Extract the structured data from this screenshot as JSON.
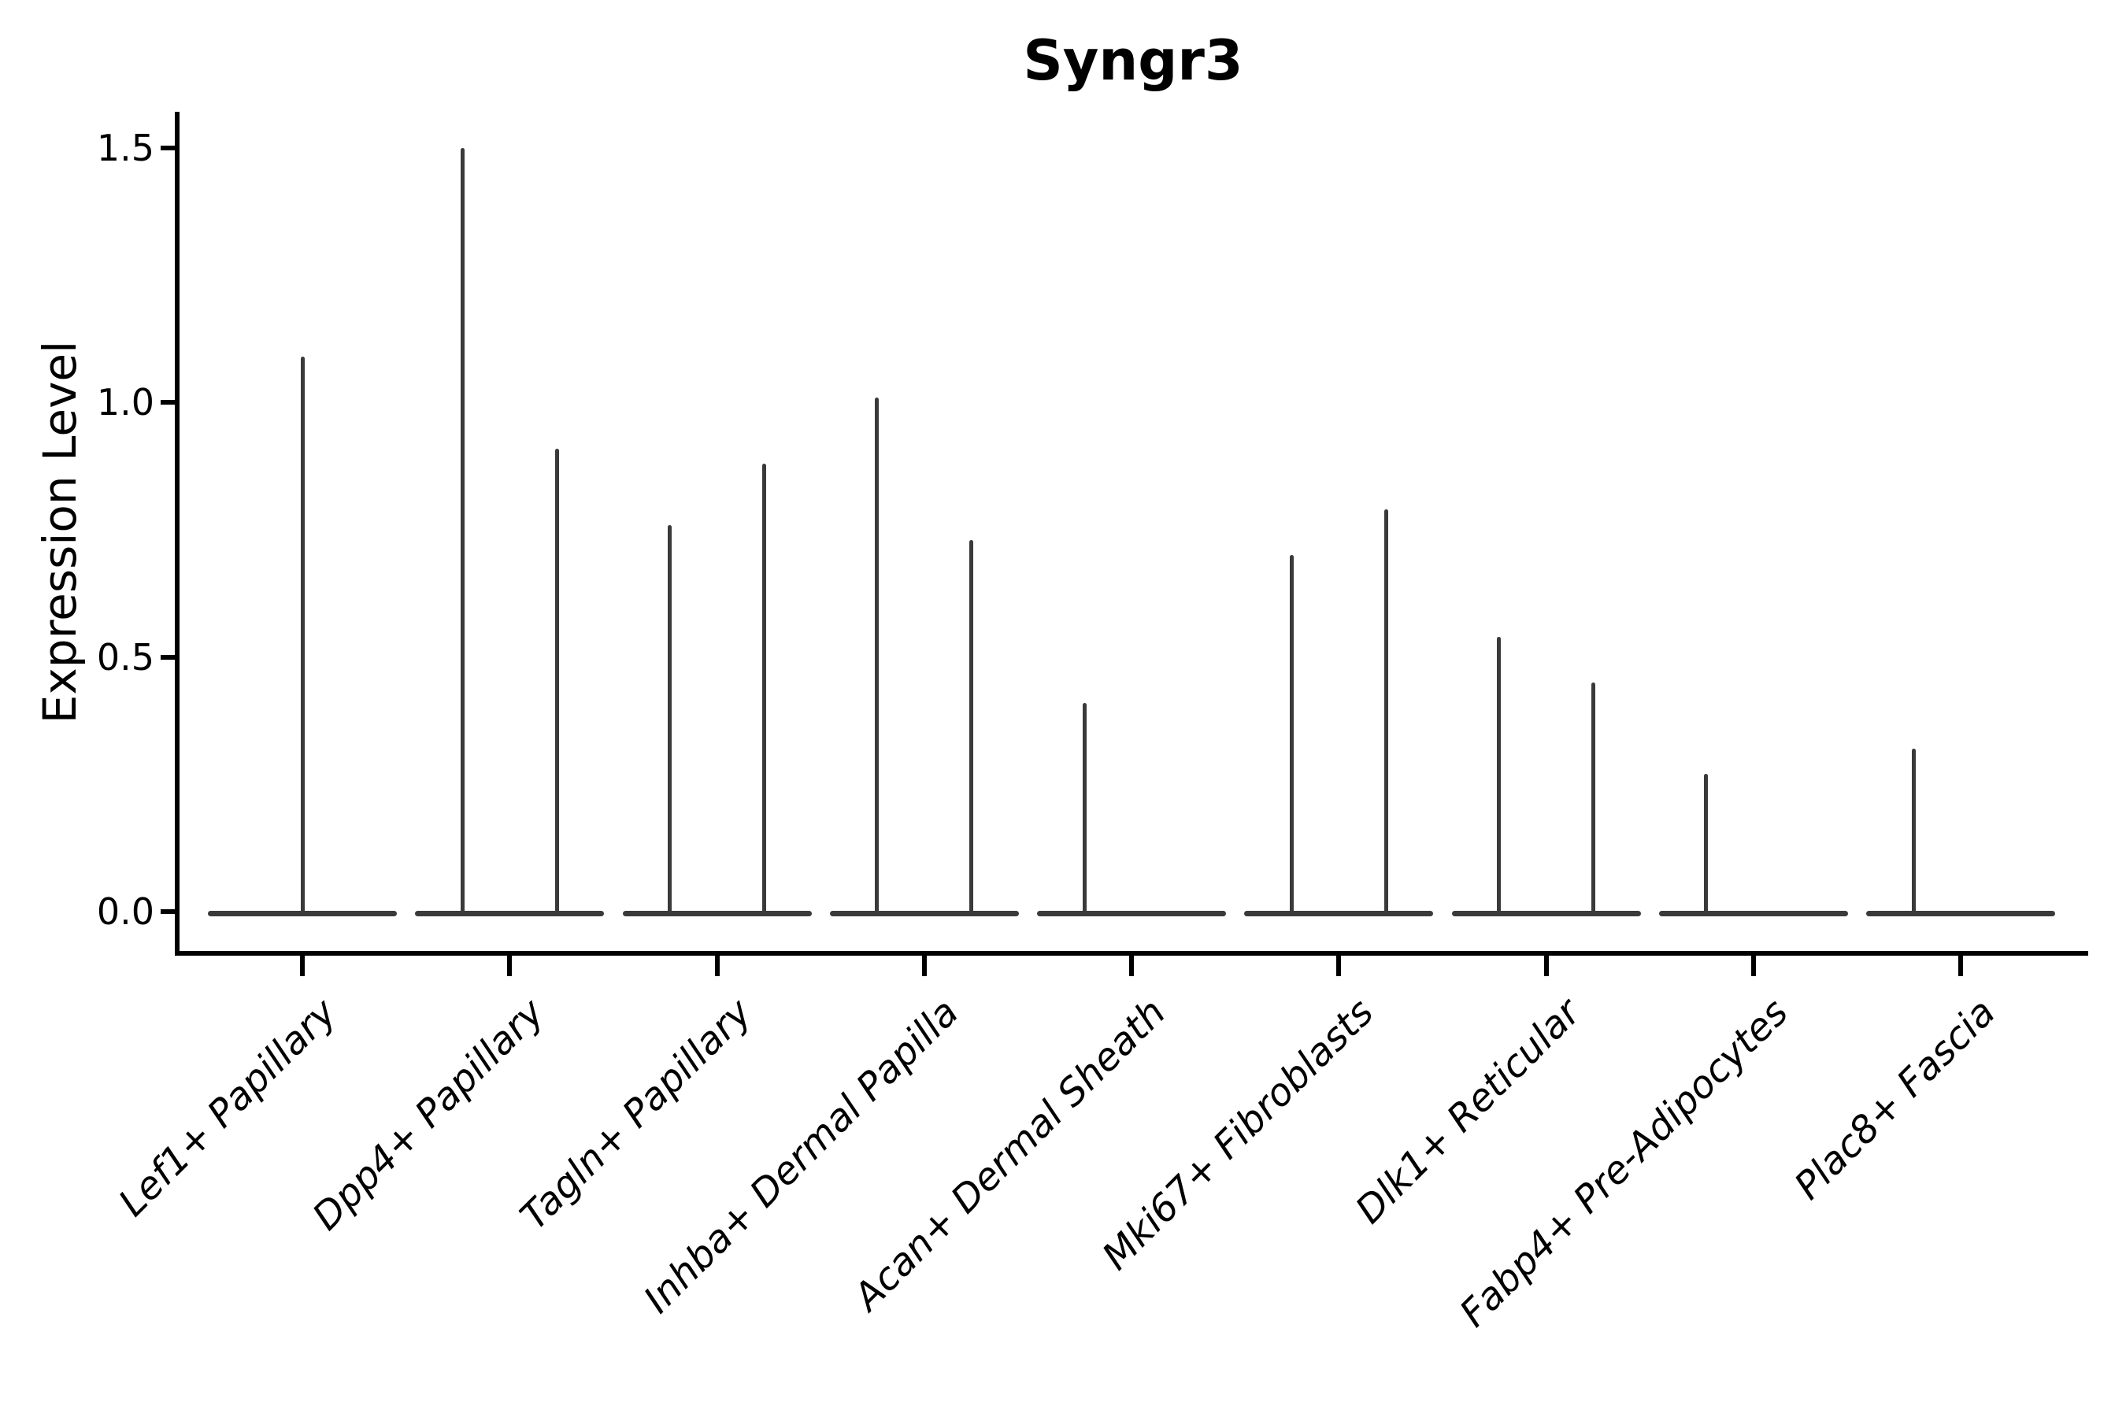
{
  "title": "Syngr3",
  "y_axis": {
    "label": "Expression Level",
    "tick_labels": [
      "0.0",
      "0.5",
      "1.0",
      "1.5"
    ]
  },
  "chart_data": {
    "type": "violin",
    "title": "Syngr3",
    "xlabel": "",
    "ylabel": "Expression Level",
    "ylim": [
      -0.08,
      1.57
    ],
    "yticks": [
      0.0,
      0.5,
      1.0,
      1.5
    ],
    "grid": false,
    "legend": "none",
    "categories": [
      "Lef1+ Papillary",
      "Dpp4+ Papillary",
      "Tagln+ Papillary",
      "Inhba+ Dermal Papilla",
      "Acan+ Dermal Sheath",
      "Mki67+ Fibroblasts",
      "Dlk1+ Reticular",
      "Fabp4+ Pre-Adipocytes",
      "Plac8+ Fascia"
    ],
    "violins": [
      {
        "category": "Lef1+ Papillary",
        "base_value": 0.0,
        "spikes": [
          {
            "slot": "center",
            "max": 1.09
          }
        ]
      },
      {
        "category": "Dpp4+ Papillary",
        "base_value": 0.0,
        "spikes": [
          {
            "slot": "left",
            "max": 1.5
          },
          {
            "slot": "right",
            "max": 0.91
          }
        ]
      },
      {
        "category": "Tagln+ Papillary",
        "base_value": 0.0,
        "spikes": [
          {
            "slot": "left",
            "max": 0.76
          },
          {
            "slot": "right",
            "max": 0.88
          }
        ]
      },
      {
        "category": "Inhba+ Dermal Papilla",
        "base_value": 0.0,
        "spikes": [
          {
            "slot": "left",
            "max": 1.01
          },
          {
            "slot": "right",
            "max": 0.73
          }
        ]
      },
      {
        "category": "Acan+ Dermal Sheath",
        "base_value": 0.0,
        "spikes": [
          {
            "slot": "left",
            "max": 0.41
          }
        ]
      },
      {
        "category": "Mki67+ Fibroblasts",
        "base_value": 0.0,
        "spikes": [
          {
            "slot": "left",
            "max": 0.7
          },
          {
            "slot": "right",
            "max": 0.79
          }
        ]
      },
      {
        "category": "Dlk1+ Reticular",
        "base_value": 0.0,
        "spikes": [
          {
            "slot": "left",
            "max": 0.54
          },
          {
            "slot": "right",
            "max": 0.45
          }
        ]
      },
      {
        "category": "Fabp4+ Pre-Adipocytes",
        "base_value": 0.0,
        "spikes": [
          {
            "slot": "left",
            "max": 0.27
          }
        ]
      },
      {
        "category": "Plac8+ Fascia",
        "base_value": 0.0,
        "spikes": [
          {
            "slot": "left",
            "max": 0.32
          }
        ]
      }
    ],
    "colors": {
      "violin": "#3a3a3a",
      "axis": "#000000",
      "text": "#000000",
      "background": "#ffffff"
    }
  }
}
